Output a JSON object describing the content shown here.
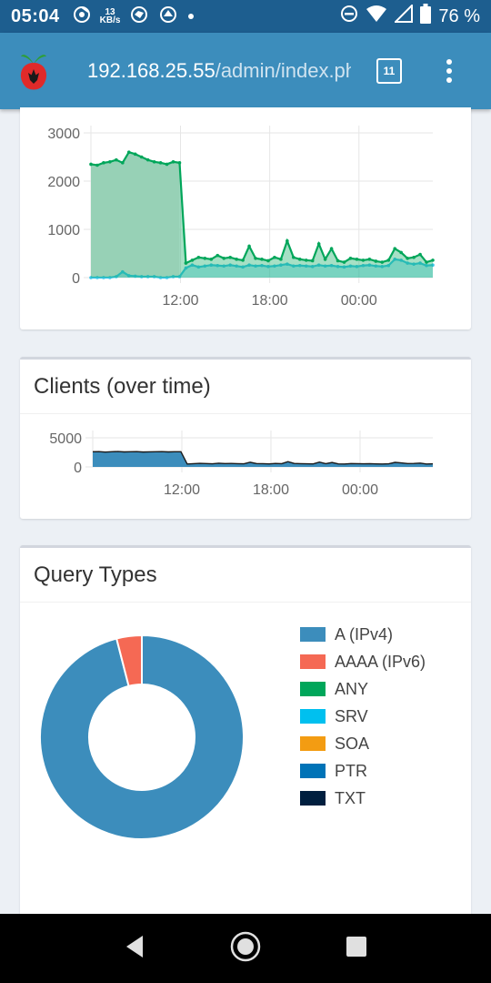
{
  "status_bar": {
    "time": "05:04",
    "speed_value": "13",
    "speed_unit": "KB/s",
    "battery": "76 %"
  },
  "browser": {
    "url_host": "192.168.25.55",
    "url_path": "/admin/index.php",
    "tab_count": "11"
  },
  "queries_chart": {
    "chart_data": {
      "type": "area",
      "x_ticks": [
        "12:00",
        "18:00",
        "00:00"
      ],
      "ylim": [
        0,
        3000
      ],
      "y_ticks": [
        "3000",
        "2000",
        "1000",
        "0"
      ],
      "series": [
        {
          "color": "#00a65a",
          "values": [
            2350,
            2330,
            2380,
            2400,
            2440,
            2380,
            2600,
            2560,
            2500,
            2440,
            2400,
            2380,
            2350,
            2400,
            2380,
            300,
            360,
            420,
            400,
            380,
            460,
            400,
            420,
            380,
            360,
            650,
            400,
            380,
            350,
            420,
            380,
            760,
            420,
            380,
            360,
            350,
            700,
            380,
            600,
            350,
            320,
            400,
            380,
            360,
            380,
            340,
            320,
            360,
            600,
            520,
            400,
            420,
            480,
            320,
            360
          ]
        },
        {
          "color": "#3cc6e8",
          "values": [
            0,
            0,
            0,
            0,
            20,
            120,
            40,
            30,
            20,
            20,
            20,
            0,
            0,
            20,
            20,
            200,
            260,
            220,
            240,
            260,
            250,
            240,
            260,
            240,
            220,
            260,
            240,
            250,
            230,
            240,
            260,
            280,
            240,
            250,
            240,
            230,
            260,
            240,
            250,
            230,
            220,
            240,
            230,
            250,
            260,
            240,
            230,
            250,
            380,
            360,
            300,
            280,
            300,
            250,
            260
          ]
        }
      ]
    }
  },
  "clients_chart": {
    "title": "Clients (over time)",
    "chart_data": {
      "type": "area",
      "x_ticks": [
        "12:00",
        "18:00",
        "00:00"
      ],
      "ylim": [
        0,
        5000
      ],
      "y_ticks": [
        "5000",
        "0"
      ],
      "series": [
        {
          "color": "#3c8dbc",
          "values": [
            2600,
            2620,
            2550,
            2600,
            2650,
            2580,
            2600,
            2620,
            2560,
            2590,
            2600,
            2620,
            2580,
            2600,
            2610,
            500,
            560,
            620,
            580,
            540,
            640,
            580,
            600,
            560,
            540,
            800,
            580,
            560,
            520,
            600,
            560,
            900,
            600,
            560,
            540,
            520,
            820,
            560,
            760,
            520,
            500,
            580,
            560,
            540,
            560,
            520,
            500,
            540,
            780,
            700,
            580,
            600,
            660,
            500,
            540
          ]
        }
      ]
    }
  },
  "query_types": {
    "title": "Query Types",
    "chart_data": {
      "type": "pie",
      "categories": [
        "A (IPv4)",
        "AAAA (IPv6)",
        "ANY",
        "SRV",
        "SOA",
        "PTR",
        "TXT"
      ],
      "values": [
        96,
        4,
        0,
        0,
        0,
        0,
        0
      ],
      "colors": [
        "#3c8dbc",
        "#f56954",
        "#00a65a",
        "#00c0ef",
        "#f39c12",
        "#0073b7",
        "#001f3f"
      ]
    }
  }
}
